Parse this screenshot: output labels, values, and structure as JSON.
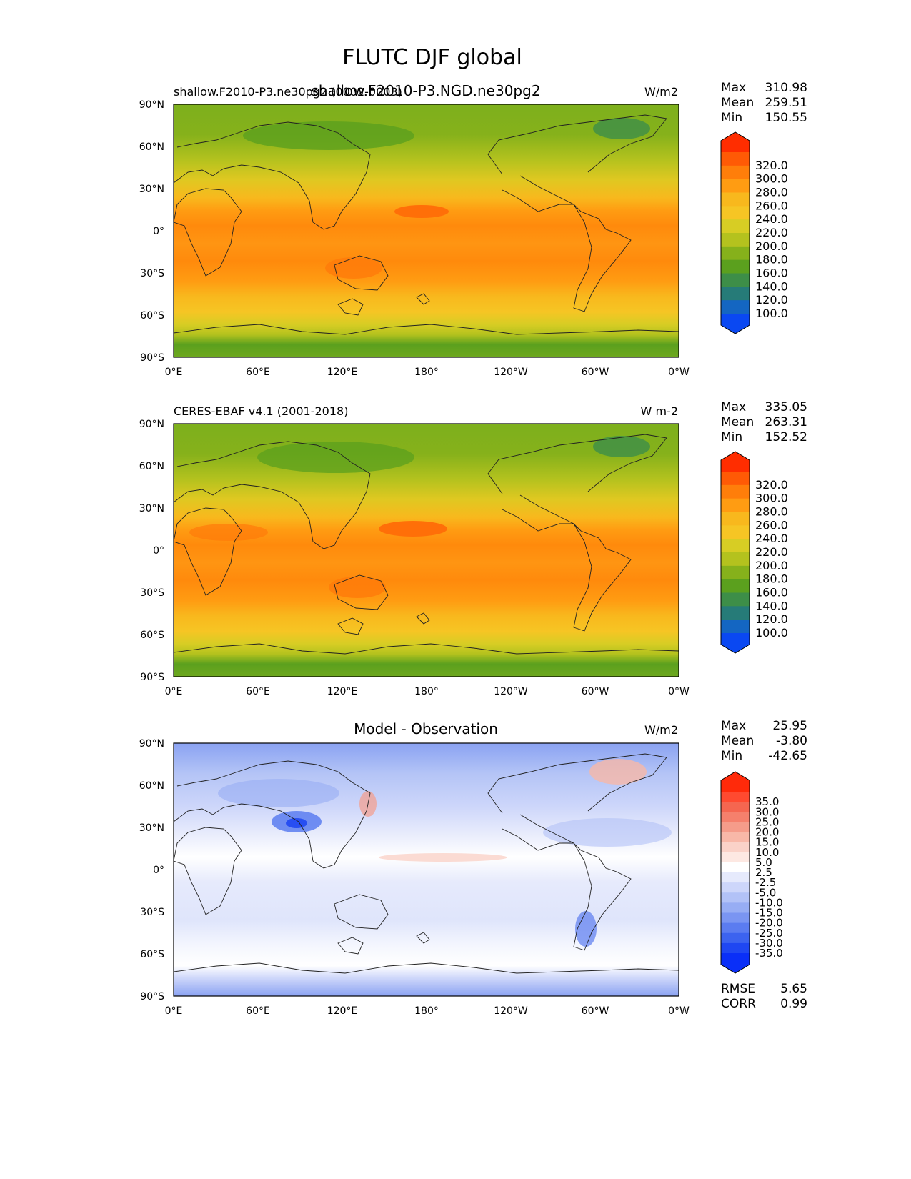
{
  "figure": {
    "title": "FLUTC DJF global"
  },
  "axes": {
    "lon_ticks": [
      "0°E",
      "60°E",
      "120°E",
      "180°",
      "120°W",
      "60°W",
      "0°W"
    ],
    "lat_ticks": [
      "90°N",
      "60°N",
      "30°N",
      "0°",
      "30°S",
      "60°S",
      "90°S"
    ]
  },
  "panels": [
    {
      "title_left": "shallow.F2010-P3.ne30pg2 (0002-0003)",
      "title_center": "shallow.F2010-P3.NGD.ne30pg2",
      "units": "W/m2",
      "stats": [
        {
          "label": "Max",
          "value": "310.98"
        },
        {
          "label": "Mean",
          "value": "259.51"
        },
        {
          "label": "Min",
          "value": "150.55"
        }
      ]
    },
    {
      "title_left": "CERES-EBAF v4.1 (2001-2018)",
      "title_center": "",
      "units": "W m-2",
      "stats": [
        {
          "label": "Max",
          "value": "335.05"
        },
        {
          "label": "Mean",
          "value": "263.31"
        },
        {
          "label": "Min",
          "value": "152.52"
        }
      ]
    },
    {
      "title_left": "",
      "title_center": "Model - Observation",
      "units": "W/m2",
      "stats": [
        {
          "label": "Max",
          "value": "25.95"
        },
        {
          "label": "Mean",
          "value": "-3.80"
        },
        {
          "label": "Min",
          "value": "-42.65"
        }
      ],
      "extra_stats": [
        {
          "label": "RMSE",
          "value": "5.65"
        },
        {
          "label": "CORR",
          "value": "0.99"
        }
      ]
    }
  ],
  "colorbars": {
    "field": {
      "labels": [
        "320.0",
        "300.0",
        "280.0",
        "260.0",
        "240.0",
        "220.0",
        "200.0",
        "180.0",
        "160.0",
        "140.0",
        "120.0",
        "100.0"
      ],
      "colors": [
        "#ff2d00",
        "#ff5a05",
        "#ff7e0a",
        "#ff9c12",
        "#f8b81d",
        "#f6c524",
        "#d7cd24",
        "#b4c21e",
        "#86b11b",
        "#5ba01e",
        "#3d8e48",
        "#267b78",
        "#1466c2",
        "#0a48f2"
      ]
    },
    "diff": {
      "labels": [
        "35.0",
        "30.0",
        "25.0",
        "20.0",
        "15.0",
        "10.0",
        "5.0",
        "2.5",
        "-2.5",
        "-5.0",
        "-10.0",
        "-15.0",
        "-20.0",
        "-25.0",
        "-30.0",
        "-35.0"
      ],
      "colors": [
        "#ff2a0a",
        "#ff4a30",
        "#f56650",
        "#f5806c",
        "#f59c8a",
        "#f8b8a8",
        "#fad2c8",
        "#fde8e2",
        "#ffffff",
        "#e6eafc",
        "#cdd6fa",
        "#b2c2f7",
        "#97adf4",
        "#7a95f2",
        "#5b7cf0",
        "#3c63ef",
        "#1f47f2",
        "#0a2ff8"
      ]
    }
  }
}
